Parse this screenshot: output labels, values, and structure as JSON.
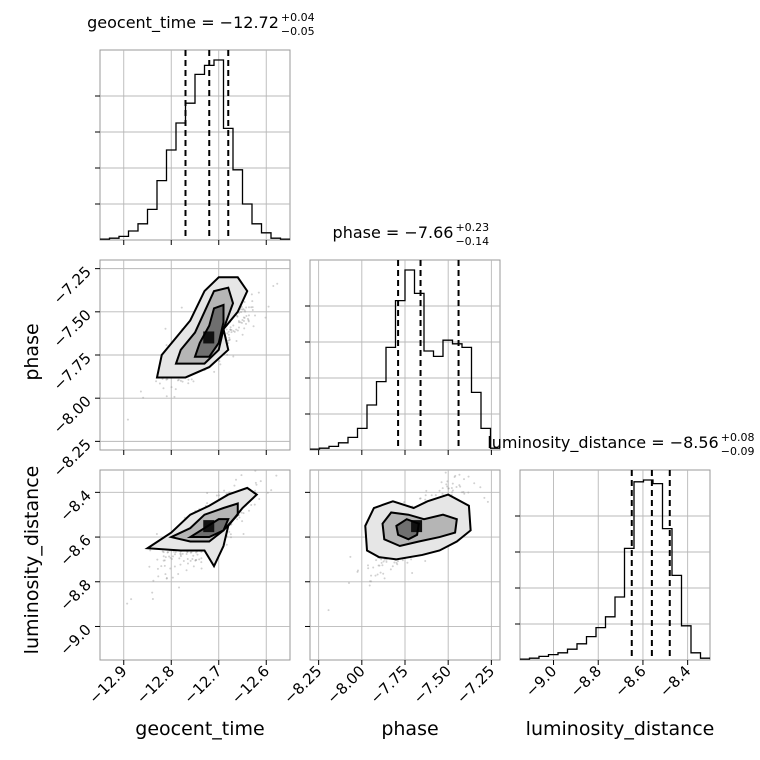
{
  "chart_data": {
    "type": "corner",
    "parameters": [
      {
        "name": "geocent_time",
        "axis_label": "geocent_time",
        "range": [
          -12.95,
          -12.55
        ],
        "ticks": [
          -12.9,
          -12.8,
          -12.7,
          -12.6
        ],
        "tick_labels": [
          "−12.9",
          "−12.8",
          "−12.7",
          "−12.6"
        ],
        "title": "geocent_time = −12.72",
        "title_plus": "+0.04",
        "title_minus": "−0.05",
        "quantiles": [
          -12.77,
          -12.72,
          -12.68
        ],
        "hist_edges": [
          -12.95,
          -12.93,
          -12.91,
          -12.89,
          -12.87,
          -12.85,
          -12.83,
          -12.81,
          -12.79,
          -12.77,
          -12.75,
          -12.73,
          -12.71,
          -12.69,
          -12.67,
          -12.65,
          -12.63,
          -12.61,
          -12.59,
          -12.57,
          -12.55
        ],
        "hist_counts": [
          0.005,
          0.01,
          0.02,
          0.05,
          0.09,
          0.17,
          0.33,
          0.5,
          0.65,
          0.76,
          0.92,
          0.97,
          1.0,
          0.62,
          0.39,
          0.2,
          0.09,
          0.04,
          0.01,
          0.005
        ]
      },
      {
        "name": "phase",
        "axis_label": "phase",
        "range": [
          -8.3,
          -7.2
        ],
        "ticks": [
          -8.25,
          -8.0,
          -7.75,
          -7.5,
          -7.25
        ],
        "tick_labels": [
          "−8.25",
          "−8.00",
          "−7.75",
          "−7.50",
          "−7.25"
        ],
        "title": "phase = −7.66",
        "title_plus": "+0.23",
        "title_minus": "−0.14",
        "quantiles": [
          -7.79,
          -7.66,
          -7.44
        ],
        "hist_edges": [
          -8.3,
          -8.245,
          -8.19,
          -8.135,
          -8.08,
          -8.025,
          -7.97,
          -7.915,
          -7.86,
          -7.805,
          -7.75,
          -7.695,
          -7.64,
          -7.585,
          -7.53,
          -7.475,
          -7.42,
          -7.365,
          -7.31,
          -7.255,
          -7.2
        ],
        "hist_counts": [
          0.005,
          0.01,
          0.02,
          0.04,
          0.07,
          0.12,
          0.25,
          0.38,
          0.57,
          0.83,
          1.0,
          0.87,
          0.55,
          0.52,
          0.61,
          0.59,
          0.57,
          0.32,
          0.12,
          0.01
        ]
      },
      {
        "name": "luminosity_distance",
        "axis_label": "luminosity_distance",
        "range": [
          -9.15,
          -8.3
        ],
        "ticks": [
          -9.0,
          -8.8,
          -8.6,
          -8.4
        ],
        "tick_labels": [
          "−9.0",
          "−8.8",
          "−8.6",
          "−8.4"
        ],
        "title": "luminosity_distance = −8.56",
        "title_plus": "+0.08",
        "title_minus": "−0.09",
        "quantiles": [
          -8.65,
          -8.56,
          -8.48
        ],
        "hist_edges": [
          -9.15,
          -9.1075,
          -9.065,
          -9.0225,
          -8.98,
          -8.9375,
          -8.895,
          -8.8525,
          -8.81,
          -8.7675,
          -8.725,
          -8.6825,
          -8.64,
          -8.5975,
          -8.555,
          -8.5125,
          -8.47,
          -8.4275,
          -8.385,
          -8.3425,
          -8.3
        ],
        "hist_counts": [
          0.005,
          0.01,
          0.02,
          0.03,
          0.04,
          0.06,
          0.09,
          0.13,
          0.18,
          0.24,
          0.35,
          0.62,
          0.99,
          1.0,
          0.98,
          0.73,
          0.47,
          0.19,
          0.04,
          0.01
        ]
      }
    ],
    "pairs": [
      {
        "x": "geocent_time",
        "y": "phase",
        "ylim": [
          -8.3,
          -7.2
        ],
        "yticks": [
          -8.25,
          -8.0,
          -7.75,
          -7.5,
          -7.25
        ],
        "ytick_labels": [
          "−8.25",
          "−8.00",
          "−7.75",
          "−7.50",
          "−7.25"
        ],
        "ylabel": "phase",
        "density_center": [
          -12.72,
          -7.66
        ],
        "contours": [
          [
            [
              -12.83,
              -7.88
            ],
            [
              -12.82,
              -7.75
            ],
            [
              -12.79,
              -7.65
            ],
            [
              -12.76,
              -7.55
            ],
            [
              -12.73,
              -7.38
            ],
            [
              -12.7,
              -7.3
            ],
            [
              -12.66,
              -7.3
            ],
            [
              -12.64,
              -7.38
            ],
            [
              -12.66,
              -7.5
            ],
            [
              -12.69,
              -7.6
            ],
            [
              -12.68,
              -7.72
            ],
            [
              -12.72,
              -7.82
            ],
            [
              -12.77,
              -7.88
            ]
          ],
          [
            [
              -12.79,
              -7.8
            ],
            [
              -12.78,
              -7.72
            ],
            [
              -12.75,
              -7.62
            ],
            [
              -12.73,
              -7.5
            ],
            [
              -12.71,
              -7.38
            ],
            [
              -12.68,
              -7.36
            ],
            [
              -12.67,
              -7.45
            ],
            [
              -12.69,
              -7.6
            ],
            [
              -12.7,
              -7.72
            ],
            [
              -12.73,
              -7.8
            ]
          ],
          [
            [
              -12.75,
              -7.76
            ],
            [
              -12.74,
              -7.68
            ],
            [
              -12.72,
              -7.58
            ],
            [
              -12.71,
              -7.48
            ],
            [
              -12.69,
              -7.46
            ],
            [
              -12.69,
              -7.56
            ],
            [
              -12.7,
              -7.68
            ],
            [
              -12.72,
              -7.76
            ]
          ]
        ]
      },
      {
        "x": "geocent_time",
        "y": "luminosity_distance",
        "ylim": [
          -9.15,
          -8.3
        ],
        "yticks": [
          -9.0,
          -8.8,
          -8.6,
          -8.4
        ],
        "ytick_labels": [
          "−9.0",
          "−8.8",
          "−8.6",
          "−8.4"
        ],
        "ylabel": "luminosity_distance",
        "density_center": [
          -12.72,
          -8.56
        ],
        "contours": [
          [
            [
              -12.85,
              -8.65
            ],
            [
              -12.8,
              -8.58
            ],
            [
              -12.76,
              -8.5
            ],
            [
              -12.72,
              -8.46
            ],
            [
              -12.68,
              -8.41
            ],
            [
              -12.64,
              -8.38
            ],
            [
              -12.62,
              -8.41
            ],
            [
              -12.65,
              -8.47
            ],
            [
              -12.68,
              -8.55
            ],
            [
              -12.69,
              -8.64
            ],
            [
              -12.71,
              -8.73
            ],
            [
              -12.73,
              -8.66
            ],
            [
              -12.78,
              -8.66
            ]
          ],
          [
            [
              -12.8,
              -8.6
            ],
            [
              -12.76,
              -8.56
            ],
            [
              -12.73,
              -8.5
            ],
            [
              -12.69,
              -8.47
            ],
            [
              -12.66,
              -8.45
            ],
            [
              -12.66,
              -8.5
            ],
            [
              -12.69,
              -8.57
            ],
            [
              -12.72,
              -8.62
            ],
            [
              -12.76,
              -8.62
            ]
          ],
          [
            [
              -12.76,
              -8.6
            ],
            [
              -12.73,
              -8.56
            ],
            [
              -12.7,
              -8.52
            ],
            [
              -12.68,
              -8.52
            ],
            [
              -12.69,
              -8.57
            ],
            [
              -12.72,
              -8.6
            ]
          ]
        ]
      },
      {
        "x": "phase",
        "y": "luminosity_distance",
        "ylim": [
          -9.15,
          -8.3
        ],
        "yticks": [],
        "ytick_labels": [],
        "ylabel": "",
        "density_center": [
          -7.68,
          -8.56
        ],
        "contours": [
          [
            [
              -7.97,
              -8.66
            ],
            [
              -7.98,
              -8.55
            ],
            [
              -7.93,
              -8.47
            ],
            [
              -7.82,
              -8.44
            ],
            [
              -7.7,
              -8.47
            ],
            [
              -7.62,
              -8.44
            ],
            [
              -7.5,
              -8.41
            ],
            [
              -7.38,
              -8.46
            ],
            [
              -7.37,
              -8.57
            ],
            [
              -7.45,
              -8.62
            ],
            [
              -7.55,
              -8.66
            ],
            [
              -7.65,
              -8.68
            ],
            [
              -7.8,
              -8.7
            ],
            [
              -7.9,
              -8.69
            ]
          ],
          [
            [
              -7.87,
              -8.61
            ],
            [
              -7.88,
              -8.54
            ],
            [
              -7.83,
              -8.49
            ],
            [
              -7.73,
              -8.5
            ],
            [
              -7.64,
              -8.52
            ],
            [
              -7.53,
              -8.5
            ],
            [
              -7.45,
              -8.52
            ],
            [
              -7.46,
              -8.58
            ],
            [
              -7.55,
              -8.6
            ],
            [
              -7.67,
              -8.62
            ],
            [
              -7.78,
              -8.64
            ]
          ],
          [
            [
              -7.79,
              -8.59
            ],
            [
              -7.8,
              -8.55
            ],
            [
              -7.74,
              -8.52
            ],
            [
              -7.67,
              -8.54
            ],
            [
              -7.68,
              -8.59
            ],
            [
              -7.73,
              -8.61
            ]
          ]
        ]
      }
    ],
    "grid": true
  }
}
